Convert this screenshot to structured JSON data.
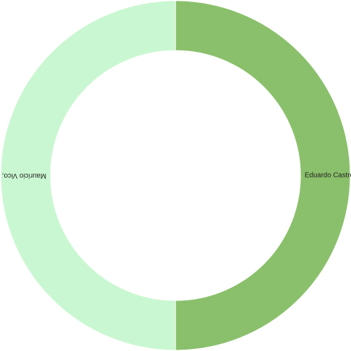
{
  "chart_data": {
    "type": "pie",
    "variant": "donut",
    "title": "",
    "slices": [
      {
        "label": "Eduardo Castro",
        "value": 50,
        "color": "#8ac06b"
      },
      {
        "label": "Maurício Vico,",
        "value": 50,
        "color": "#c9f7d1"
      }
    ],
    "grid": false,
    "legend": "none"
  }
}
